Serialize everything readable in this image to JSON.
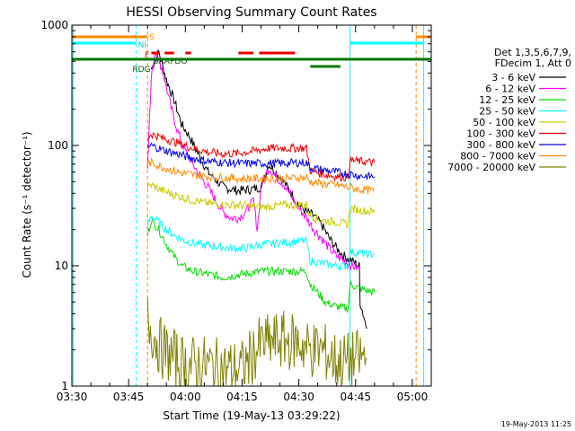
{
  "chart_data": {
    "type": "line",
    "title": "HESSI Observing Summary Count Rates",
    "xlabel": "Start Time (19-May-13 03:29:22)",
    "ylabel": "Count Rate (s⁻¹ detector⁻¹)",
    "yscale": "log",
    "ylim": [
      1,
      1000
    ],
    "xlim_minutes": [
      0,
      95
    ],
    "x_tick_labels": [
      "03:30",
      "03:45",
      "04:00",
      "04:15",
      "04:30",
      "04:45",
      "05:00"
    ],
    "y_tick_labels": [
      "1",
      "10",
      "100",
      "1000"
    ],
    "timestamp": "19-May-2013 11:25",
    "legend_header": [
      "Det 1,3,5,6,7,9,",
      "FDecim 1, Att 0"
    ],
    "series": [
      {
        "name": "3 - 6 keV",
        "color": "#000000",
        "points": [
          [
            21,
            430
          ],
          [
            23,
            600
          ],
          [
            25,
            350
          ],
          [
            27,
            240
          ],
          [
            29,
            150
          ],
          [
            31,
            120
          ],
          [
            33,
            90
          ],
          [
            36,
            60
          ],
          [
            40,
            45
          ],
          [
            44,
            42
          ],
          [
            47,
            43
          ],
          [
            50,
            45
          ],
          [
            52,
            70
          ],
          [
            54,
            60
          ],
          [
            56,
            50
          ],
          [
            58,
            40
          ],
          [
            60,
            32
          ],
          [
            62,
            28
          ],
          [
            64,
            26
          ],
          [
            66,
            22
          ],
          [
            68,
            17
          ],
          [
            70,
            14
          ],
          [
            72,
            12
          ],
          [
            74,
            11
          ],
          [
            75,
            10.5
          ],
          [
            76,
            10
          ],
          [
            76.2,
            5
          ],
          [
            78,
            3
          ]
        ]
      },
      {
        "name": "6 - 12 keV",
        "color": "#ff00ff",
        "points": [
          [
            20,
            70
          ],
          [
            21,
            360
          ],
          [
            22,
            620
          ],
          [
            24,
            420
          ],
          [
            26,
            220
          ],
          [
            28,
            130
          ],
          [
            30,
            90
          ],
          [
            32,
            70
          ],
          [
            34,
            55
          ],
          [
            36,
            45
          ],
          [
            38,
            35
          ],
          [
            40,
            28
          ],
          [
            42,
            25
          ],
          [
            44,
            25
          ],
          [
            46,
            28
          ],
          [
            48,
            35
          ],
          [
            49,
            20
          ],
          [
            50,
            45
          ],
          [
            52,
            65
          ],
          [
            54,
            55
          ],
          [
            56,
            48
          ],
          [
            58,
            38
          ],
          [
            60,
            30
          ],
          [
            62,
            25
          ],
          [
            64,
            20
          ],
          [
            66,
            17
          ],
          [
            68,
            14
          ],
          [
            70,
            12
          ],
          [
            72,
            11
          ],
          [
            74,
            10
          ],
          [
            76,
            9.5
          ]
        ]
      },
      {
        "name": "12 - 25 keV",
        "color": "#00dd00",
        "points": [
          [
            20,
            18
          ],
          [
            21,
            24
          ],
          [
            23,
            20
          ],
          [
            25,
            15
          ],
          [
            27,
            12
          ],
          [
            29,
            10
          ],
          [
            32,
            9
          ],
          [
            36,
            8.5
          ],
          [
            40,
            8
          ],
          [
            45,
            8.5
          ],
          [
            50,
            9
          ],
          [
            55,
            9
          ],
          [
            62,
            9
          ],
          [
            63,
            7
          ],
          [
            65,
            6
          ],
          [
            67,
            5
          ],
          [
            69,
            4.7
          ],
          [
            71,
            4.5
          ],
          [
            73,
            4.4
          ],
          [
            73.5,
            7
          ],
          [
            76,
            6.5
          ],
          [
            78,
            6.2
          ],
          [
            80,
            6
          ]
        ]
      },
      {
        "name": "25 - 50 keV",
        "color": "#00ffff",
        "points": [
          [
            20,
            22
          ],
          [
            21,
            26
          ],
          [
            23,
            23
          ],
          [
            25,
            20
          ],
          [
            27,
            18
          ],
          [
            30,
            16
          ],
          [
            34,
            15
          ],
          [
            38,
            14.5
          ],
          [
            42,
            14
          ],
          [
            46,
            14
          ],
          [
            50,
            15
          ],
          [
            55,
            15.5
          ],
          [
            60,
            16
          ],
          [
            62,
            16
          ],
          [
            63,
            11
          ],
          [
            66,
            10.5
          ],
          [
            70,
            10
          ],
          [
            73,
            10
          ],
          [
            73.5,
            13
          ],
          [
            76,
            12.8
          ],
          [
            78,
            12.5
          ],
          [
            80,
            12.5
          ]
        ]
      },
      {
        "name": "50 - 100 keV",
        "color": "#cccc00",
        "points": [
          [
            20,
            45
          ],
          [
            21,
            47
          ],
          [
            24,
            42
          ],
          [
            28,
            38
          ],
          [
            32,
            35
          ],
          [
            36,
            33
          ],
          [
            40,
            32
          ],
          [
            44,
            32
          ],
          [
            48,
            31
          ],
          [
            52,
            31
          ],
          [
            56,
            32
          ],
          [
            60,
            32
          ],
          [
            62,
            32
          ],
          [
            63,
            26
          ],
          [
            66,
            24
          ],
          [
            70,
            23
          ],
          [
            73,
            22
          ],
          [
            73.5,
            30
          ],
          [
            76,
            29
          ],
          [
            80,
            28
          ]
        ]
      },
      {
        "name": "100 - 300 keV",
        "color": "#ee0000",
        "points": [
          [
            20,
            115
          ],
          [
            21,
            125
          ],
          [
            24,
            115
          ],
          [
            28,
            105
          ],
          [
            32,
            95
          ],
          [
            36,
            88
          ],
          [
            40,
            85
          ],
          [
            44,
            86
          ],
          [
            48,
            90
          ],
          [
            52,
            95
          ],
          [
            56,
            95
          ],
          [
            60,
            95
          ],
          [
            62,
            95
          ],
          [
            63,
            62
          ],
          [
            66,
            58
          ],
          [
            70,
            55
          ],
          [
            73,
            54
          ],
          [
            73.5,
            75
          ],
          [
            76,
            74
          ],
          [
            80,
            72
          ]
        ]
      },
      {
        "name": "300 - 800 keV",
        "color": "#0000ee",
        "points": [
          [
            20,
            95
          ],
          [
            21,
            100
          ],
          [
            24,
            92
          ],
          [
            28,
            85
          ],
          [
            32,
            78
          ],
          [
            36,
            74
          ],
          [
            40,
            72
          ],
          [
            44,
            71
          ],
          [
            48,
            71
          ],
          [
            52,
            71
          ],
          [
            56,
            71
          ],
          [
            60,
            72
          ],
          [
            62,
            72
          ],
          [
            63,
            65
          ],
          [
            66,
            63
          ],
          [
            70,
            60
          ],
          [
            73,
            58
          ],
          [
            73.5,
            58
          ],
          [
            76,
            56
          ],
          [
            80,
            55
          ]
        ]
      },
      {
        "name": "800 - 7000 keV",
        "color": "#ff8800",
        "points": [
          [
            20,
            70
          ],
          [
            21,
            72
          ],
          [
            24,
            66
          ],
          [
            28,
            60
          ],
          [
            32,
            57
          ],
          [
            36,
            55
          ],
          [
            40,
            54
          ],
          [
            44,
            53
          ],
          [
            48,
            53
          ],
          [
            52,
            53
          ],
          [
            56,
            53
          ],
          [
            60,
            54
          ],
          [
            62,
            54
          ],
          [
            63,
            50
          ],
          [
            66,
            48
          ],
          [
            70,
            47
          ],
          [
            73,
            45
          ],
          [
            73.5,
            45
          ],
          [
            76,
            43
          ],
          [
            80,
            42
          ]
        ]
      },
      {
        "name": "7000 - 20000 keV",
        "color": "#808000",
        "points": [
          [
            20,
            3.5
          ],
          [
            21,
            3
          ],
          [
            22,
            2.5
          ],
          [
            24,
            2
          ],
          [
            27,
            1.7
          ],
          [
            30,
            1.5
          ],
          [
            35,
            1.5
          ],
          [
            40,
            1.4
          ],
          [
            45,
            1.4
          ],
          [
            50,
            2.2
          ],
          [
            55,
            2.4
          ],
          [
            60,
            2.3
          ],
          [
            63,
            2
          ],
          [
            66,
            2
          ],
          [
            70,
            1.6
          ],
          [
            73,
            1.6
          ],
          [
            76,
            1.7
          ],
          [
            78,
            1.7
          ]
        ]
      }
    ],
    "annotations": [
      {
        "label": "S",
        "color": "#ff8800"
      },
      {
        "label": "NI",
        "color": "#00cccc"
      },
      {
        "label": "F",
        "color": "#ee0000"
      },
      {
        "label": "SAAPDO",
        "color": "#006600"
      },
      {
        "label": "RDG",
        "color": "#006600"
      }
    ]
  }
}
